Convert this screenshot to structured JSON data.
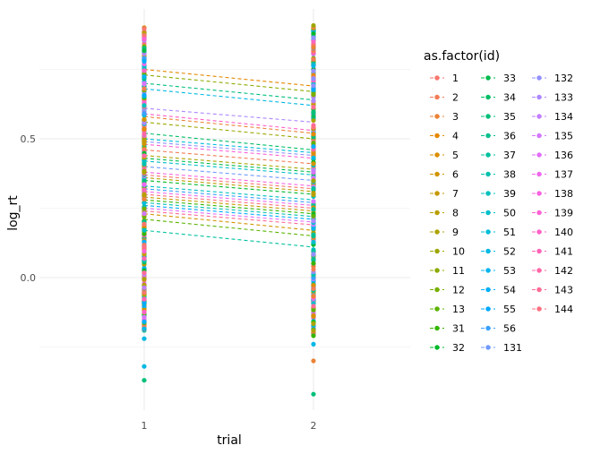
{
  "chart_data": {
    "type": "scatter",
    "xlabel": "trial",
    "ylabel": "log_rt",
    "x_categories": [
      "1",
      "2"
    ],
    "y_ticks": [
      0.0,
      0.5
    ],
    "y_tick_labels": [
      "0.0",
      "0.5"
    ],
    "ylim": [
      -0.5,
      0.93
    ],
    "grid": true,
    "legend": {
      "title": "as.factor(id)",
      "placement": "right",
      "columns": 3,
      "entries": [
        "1",
        "2",
        "3",
        "4",
        "5",
        "6",
        "7",
        "8",
        "9",
        "10",
        "11",
        "12",
        "13",
        "31",
        "32",
        "33",
        "34",
        "35",
        "36",
        "37",
        "38",
        "39",
        "50",
        "51",
        "52",
        "53",
        "54",
        "55",
        "56",
        "131",
        "132",
        "133",
        "134",
        "135",
        "136",
        "137",
        "138",
        "139",
        "140",
        "141",
        "142",
        "143",
        "144"
      ]
    },
    "fitted_lines": [
      {
        "trial1": 0.75,
        "trial2": 0.69
      },
      {
        "trial1": 0.73,
        "trial2": 0.67
      },
      {
        "trial1": 0.7,
        "trial2": 0.64
      },
      {
        "trial1": 0.68,
        "trial2": 0.62
      },
      {
        "trial1": 0.61,
        "trial2": 0.56
      },
      {
        "trial1": 0.59,
        "trial2": 0.53
      },
      {
        "trial1": 0.58,
        "trial2": 0.52
      },
      {
        "trial1": 0.56,
        "trial2": 0.5
      },
      {
        "trial1": 0.52,
        "trial2": 0.46
      },
      {
        "trial1": 0.5,
        "trial2": 0.45
      },
      {
        "trial1": 0.49,
        "trial2": 0.44
      },
      {
        "trial1": 0.48,
        "trial2": 0.43
      },
      {
        "trial1": 0.46,
        "trial2": 0.41
      },
      {
        "trial1": 0.44,
        "trial2": 0.39
      },
      {
        "trial1": 0.43,
        "trial2": 0.38
      },
      {
        "trial1": 0.42,
        "trial2": 0.37
      },
      {
        "trial1": 0.4,
        "trial2": 0.35
      },
      {
        "trial1": 0.38,
        "trial2": 0.33
      },
      {
        "trial1": 0.37,
        "trial2": 0.32
      },
      {
        "trial1": 0.36,
        "trial2": 0.31
      },
      {
        "trial1": 0.35,
        "trial2": 0.3
      },
      {
        "trial1": 0.33,
        "trial2": 0.28
      },
      {
        "trial1": 0.32,
        "trial2": 0.27
      },
      {
        "trial1": 0.31,
        "trial2": 0.26
      },
      {
        "trial1": 0.3,
        "trial2": 0.25
      },
      {
        "trial1": 0.29,
        "trial2": 0.24
      },
      {
        "trial1": 0.28,
        "trial2": 0.23
      },
      {
        "trial1": 0.27,
        "trial2": 0.22
      },
      {
        "trial1": 0.26,
        "trial2": 0.21
      },
      {
        "trial1": 0.25,
        "trial2": 0.2
      },
      {
        "trial1": 0.24,
        "trial2": 0.19
      },
      {
        "trial1": 0.23,
        "trial2": 0.17
      },
      {
        "trial1": 0.21,
        "trial2": 0.15
      },
      {
        "trial1": 0.17,
        "trial2": 0.11
      }
    ],
    "notable_points": [
      {
        "trial": "1",
        "y": -0.32
      },
      {
        "trial": "1",
        "y": -0.37
      },
      {
        "trial": "1",
        "y": -0.22
      },
      {
        "trial": "2",
        "y": -0.3
      },
      {
        "trial": "2",
        "y": -0.42
      },
      {
        "trial": "2",
        "y": -0.24
      }
    ],
    "trial1_range": [
      -0.19,
      0.91
    ],
    "trial2_range": [
      -0.21,
      0.91
    ]
  }
}
